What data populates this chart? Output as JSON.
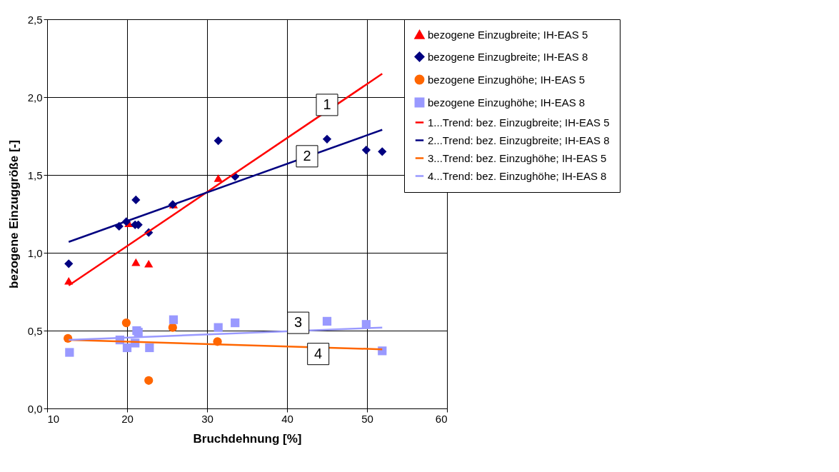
{
  "chart_data": {
    "type": "scatter",
    "xlabel": "Bruchdehnung [%]",
    "ylabel": "bezogene Einzuggröße [-]",
    "xlim": [
      10,
      60
    ],
    "xticks": [
      10,
      20,
      30,
      40,
      50,
      60
    ],
    "ylim": [
      0,
      2.5
    ],
    "yticks": [
      {
        "value": 0,
        "label": "0,0"
      },
      {
        "value": 0.5,
        "label": "0,5"
      },
      {
        "value": 1,
        "label": "1,0"
      },
      {
        "value": 1.5,
        "label": "1,5"
      },
      {
        "value": 2,
        "label": "2,0"
      },
      {
        "value": 2.5,
        "label": "2,5"
      }
    ],
    "grid": true,
    "legend": "right",
    "series": [
      {
        "name": "bezogene Einzugbreite; IH-EAS 5",
        "marker": "triangle",
        "color": "#ff0000",
        "x": [
          12.7,
          20.2,
          21.1,
          22.7,
          25.8,
          31.4
        ],
        "values": [
          0.82,
          1.19,
          0.94,
          0.93,
          1.31,
          1.48
        ]
      },
      {
        "name": "bezogene Einzugbreite; IH-EAS 8",
        "marker": "diamond",
        "color": "#000080",
        "x": [
          12.7,
          19.0,
          19.9,
          21.1,
          21.0,
          21.4,
          22.7,
          25.7,
          31.4,
          33.5,
          45.0,
          49.9,
          51.9
        ],
        "values": [
          0.93,
          1.17,
          1.2,
          1.34,
          1.18,
          1.18,
          1.13,
          1.31,
          1.72,
          1.49,
          1.73,
          1.66,
          1.65
        ]
      },
      {
        "name": "bezogene Einzughöhe; IH-EAS 5",
        "marker": "circle",
        "color": "#ff6600",
        "x": [
          12.6,
          19.9,
          22.7,
          25.7,
          31.3
        ],
        "values": [
          0.45,
          0.55,
          0.18,
          0.52,
          0.43
        ]
      },
      {
        "name": "bezogene Einzughöhe; IH-EAS 8",
        "marker": "square",
        "color": "#9999ff",
        "x": [
          12.8,
          19.1,
          20.0,
          21.2,
          21.4,
          21.0,
          22.8,
          25.8,
          31.4,
          33.5,
          45.0,
          49.9,
          51.9
        ],
        "values": [
          0.36,
          0.44,
          0.39,
          0.5,
          0.49,
          0.42,
          0.39,
          0.57,
          0.52,
          0.55,
          0.56,
          0.54,
          0.37
        ]
      },
      {
        "name": "1...Trend: bez. Einzugbreite; IH-EAS 5",
        "type": "line",
        "color": "#ff0000",
        "x": [
          12.7,
          51.9
        ],
        "values": [
          0.79,
          2.15
        ]
      },
      {
        "name": "2...Trend: bez. Einzugbreite; IH-EAS 8",
        "type": "line",
        "color": "#000080",
        "x": [
          12.7,
          51.9
        ],
        "values": [
          1.07,
          1.79
        ]
      },
      {
        "name": "3...Trend: bez. Einzughöhe; IH-EAS 5",
        "type": "line",
        "color": "#ff6600",
        "x": [
          12.7,
          51.9
        ],
        "values": [
          0.44,
          0.38
        ]
      },
      {
        "name": "4...Trend: bez. Einzughöhe; IH-EAS 8",
        "type": "line",
        "color": "#9999ff",
        "x": [
          12.7,
          51.9
        ],
        "values": [
          0.44,
          0.52
        ]
      }
    ],
    "annotations": [
      {
        "text": "1",
        "x": 45.0,
        "y": 1.95
      },
      {
        "text": "2",
        "x": 42.5,
        "y": 1.62
      },
      {
        "text": "3",
        "x": 41.4,
        "y": 0.55
      },
      {
        "text": "4",
        "x": 43.9,
        "y": 0.35
      }
    ]
  }
}
